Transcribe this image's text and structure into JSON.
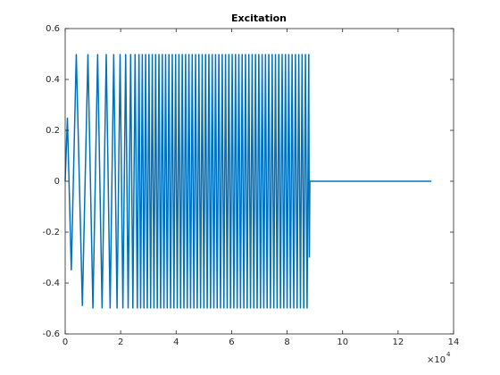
{
  "chart_data": {
    "type": "line",
    "title": "Excitation",
    "x_scale_label": "×10",
    "x_scale_exponent": "4",
    "xlim": [
      0,
      14
    ],
    "xticks": [
      0,
      2,
      4,
      6,
      8,
      10,
      12,
      14
    ],
    "ylim": [
      -0.6,
      0.6
    ],
    "yticks": [
      -0.6,
      -0.4,
      -0.2,
      0,
      0.2,
      0.4,
      0.6
    ],
    "grid": false,
    "series": [
      {
        "color": "#0072bd",
        "x": [
          0,
          0.08,
          0.22,
          0.4,
          0.62,
          0.82,
          1.0,
          1.17,
          1.33,
          1.48,
          1.62,
          1.75,
          1.87,
          1.98,
          2.08,
          2.18,
          2.27,
          2.36,
          2.44,
          2.52,
          2.6,
          2.66,
          2.72,
          2.78,
          2.84,
          2.9,
          2.96,
          3.02,
          3.08,
          3.14,
          3.2,
          3.26,
          3.32,
          3.38,
          3.44,
          3.5,
          3.56,
          3.62,
          3.68,
          3.74,
          3.8,
          3.86,
          3.92,
          3.98,
          4.04,
          4.1,
          4.16,
          4.22,
          4.28,
          4.34,
          4.4,
          4.46,
          4.52,
          4.58,
          4.64,
          4.7,
          4.76,
          4.82,
          4.88,
          4.94,
          5,
          5.06,
          5.12,
          5.18,
          5.24,
          5.3,
          5.36,
          5.42,
          5.48,
          5.54,
          5.6,
          5.66,
          5.72,
          5.78,
          5.84,
          5.9,
          5.96,
          6.02,
          6.08,
          6.14,
          6.2,
          6.26,
          6.32,
          6.38,
          6.44,
          6.5,
          6.56,
          6.62,
          6.68,
          6.74,
          6.8,
          6.86,
          6.92,
          6.98,
          7.04,
          7.1,
          7.16,
          7.22,
          7.28,
          7.34,
          7.4,
          7.46,
          7.52,
          7.58,
          7.64,
          7.7,
          7.76,
          7.82,
          7.88,
          7.94,
          8,
          8.06,
          8.12,
          8.18,
          8.24,
          8.3,
          8.36,
          8.42,
          8.48,
          8.54,
          8.6,
          8.66,
          8.72,
          8.78,
          8.8,
          8.82,
          13.2
        ],
        "values": [
          0,
          0.25,
          -0.35,
          0.5,
          -0.49,
          0.5,
          -0.5,
          0.5,
          -0.5,
          0.5,
          -0.5,
          0.5,
          -0.5,
          0.5,
          -0.5,
          0.5,
          -0.5,
          0.5,
          -0.5,
          0.5,
          -0.5,
          0.5,
          -0.5,
          0.5,
          -0.5,
          0.5,
          -0.5,
          0.5,
          -0.5,
          0.5,
          -0.5,
          0.5,
          -0.5,
          0.5,
          -0.5,
          0.5,
          -0.5,
          0.5,
          -0.5,
          0.5,
          -0.5,
          0.5,
          -0.5,
          0.5,
          -0.5,
          0.5,
          -0.5,
          0.5,
          -0.5,
          0.5,
          -0.5,
          0.5,
          -0.5,
          0.5,
          -0.5,
          0.5,
          -0.5,
          0.5,
          -0.5,
          0.5,
          -0.5,
          0.5,
          -0.5,
          0.5,
          -0.5,
          0.5,
          -0.5,
          0.5,
          -0.5,
          0.5,
          -0.5,
          0.5,
          -0.5,
          0.5,
          -0.5,
          0.5,
          -0.5,
          0.5,
          -0.5,
          0.5,
          -0.5,
          0.5,
          -0.5,
          0.5,
          -0.5,
          0.5,
          -0.5,
          0.5,
          -0.5,
          0.5,
          -0.5,
          0.5,
          -0.5,
          0.5,
          -0.5,
          0.5,
          -0.5,
          0.5,
          -0.5,
          0.5,
          -0.5,
          0.5,
          -0.5,
          0.5,
          -0.5,
          0.5,
          -0.5,
          0.5,
          -0.5,
          0.5,
          -0.5,
          0.5,
          -0.5,
          0.5,
          -0.5,
          0.5,
          -0.5,
          0.5,
          -0.5,
          0.5,
          -0.5,
          0.5,
          -0.5,
          0.5,
          -0.3,
          0,
          0
        ]
      }
    ]
  }
}
